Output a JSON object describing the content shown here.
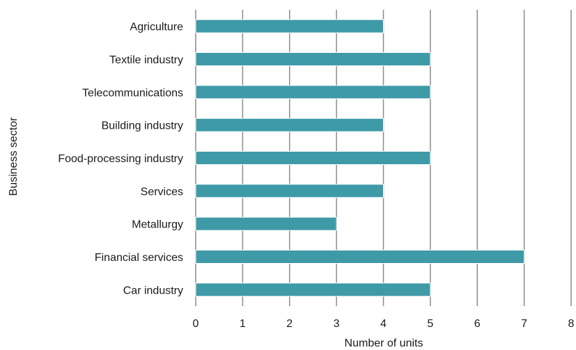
{
  "chart_data": {
    "type": "bar",
    "orientation": "horizontal",
    "categories": [
      "Agriculture",
      "Textile industry",
      "Telecommunications",
      "Building industry",
      "Food-processing industry",
      "Services",
      "Metallurgy",
      "Financial services",
      "Car industry"
    ],
    "values": [
      4,
      5,
      5,
      4,
      5,
      4,
      3,
      7,
      5
    ],
    "xlabel": "Number of units",
    "ylabel": "Business sector",
    "xlim": [
      0,
      8
    ],
    "xticks": [
      "0",
      "1",
      "2",
      "3",
      "4",
      "5",
      "6",
      "7",
      "8"
    ],
    "grid": "vertical",
    "bar_color": "#3f9aa8",
    "bar_edge_color": "#ffffff"
  }
}
